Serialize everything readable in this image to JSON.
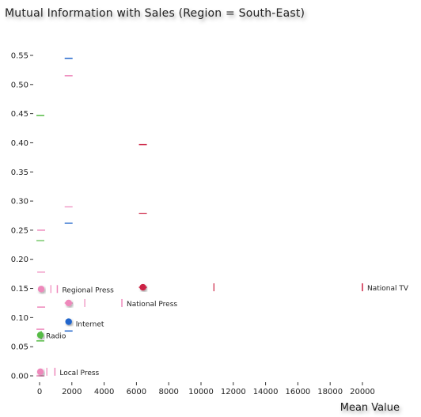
{
  "chart_data": {
    "type": "scatter",
    "title": "Mutual Information with Sales (Region = South-East)",
    "xlabel": "Mean Value",
    "ylabel": "",
    "xlim": [
      0,
      20000
    ],
    "ylim": [
      0,
      0.55
    ],
    "xticks": [
      "0",
      "2000",
      "4000",
      "6000",
      "8000",
      "10000",
      "12000",
      "14000",
      "16000",
      "18000",
      "20000"
    ],
    "yticks": [
      "0.00",
      "0.05",
      "0.10",
      "0.15",
      "0.20",
      "0.25",
      "0.30",
      "0.35",
      "0.40",
      "0.45",
      "0.50",
      "0.55"
    ],
    "grid": false,
    "points": [
      {
        "name": "National TV",
        "x": 6400,
        "y": 0.152,
        "color": "#cc2244",
        "xerr": [
          6400,
          20000
        ],
        "xmid": 10800,
        "yerr": [
          0.152,
          0.397
        ],
        "ymid": 0.279
      },
      {
        "name": "National Press",
        "x": 1800,
        "y": 0.125,
        "color": "#ee88bb",
        "xerr": [
          1800,
          5100
        ],
        "xmid": 2800,
        "yerr": [
          0.125,
          0.515
        ],
        "ymid": 0.29
      },
      {
        "name": "Internet",
        "x": 1800,
        "y": 0.093,
        "color": "#2266cc",
        "xerr": [
          1800,
          1800
        ],
        "xmid": null,
        "yerr": [
          0.077,
          0.545
        ],
        "ymid": 0.262
      },
      {
        "name": "Regional Press",
        "x": 100,
        "y": 0.149,
        "color": "#ee88bb",
        "xerr": [
          100,
          1100
        ],
        "xmid": 700,
        "yerr": [
          0.118,
          0.25
        ],
        "ymid": 0.178
      },
      {
        "name": "Radio",
        "x": 50,
        "y": 0.07,
        "color": "#55bb44",
        "xerr": [
          0,
          100
        ],
        "xmid": null,
        "yerr": [
          0.06,
          0.447
        ],
        "ymid": 0.232
      },
      {
        "name": "Local Press",
        "x": 50,
        "y": 0.007,
        "color": "#ee88bb",
        "xerr": [
          50,
          950
        ],
        "xmid": 450,
        "yerr": [
          0.0,
          0.08
        ],
        "ymid": null
      }
    ]
  }
}
